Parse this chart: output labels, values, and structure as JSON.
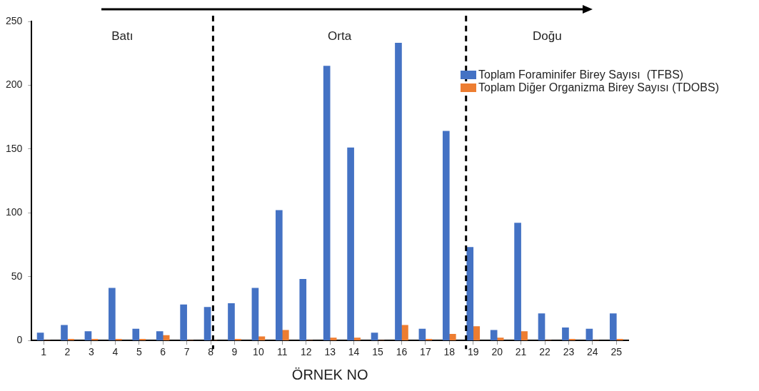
{
  "chart_data": {
    "type": "bar",
    "xlabel": "ÖRNEK NO",
    "x": [
      1,
      2,
      3,
      4,
      5,
      6,
      7,
      8,
      9,
      10,
      11,
      12,
      13,
      14,
      15,
      16,
      17,
      18,
      19,
      20,
      21,
      22,
      23,
      24,
      25
    ],
    "xlim": [
      0.5,
      25.5
    ],
    "xticks": [
      1,
      2,
      3,
      4,
      5,
      6,
      7,
      8,
      9,
      10,
      11,
      12,
      13,
      14,
      15,
      16,
      17,
      18,
      19,
      20,
      21,
      22,
      23,
      24,
      25
    ],
    "ylim": [
      0,
      250
    ],
    "yticks": [
      0,
      50,
      100,
      150,
      200,
      250
    ],
    "series": [
      {
        "name": "Toplam Foraminifer Birey Sayısı  (TFBS)",
        "color": "#4472c4",
        "values": [
          6,
          12,
          7,
          41,
          9,
          7,
          28,
          26,
          29,
          41,
          102,
          48,
          215,
          151,
          6,
          233,
          9,
          164,
          73,
          8,
          92,
          21,
          10,
          9,
          21
        ]
      },
      {
        "name": "Toplam Diğer Organizma Birey Sayısı (TDOBS)",
        "color": "#ed7d31",
        "values": [
          0,
          1,
          1,
          1,
          1,
          4,
          0,
          0,
          1,
          3,
          8,
          0,
          2,
          2,
          0,
          12,
          1,
          5,
          11,
          2,
          7,
          0,
          1,
          0,
          1
        ]
      }
    ],
    "ref_lines": [
      {
        "axis": "x",
        "value": 8.1,
        "color": "#000000",
        "line_style": "dashed"
      },
      {
        "axis": "x",
        "value": 18.7,
        "color": "#000000",
        "line_style": "dashed"
      }
    ],
    "annotations": [
      "Batı",
      "Orta",
      "Doğu"
    ],
    "grid": false,
    "legend": "right"
  }
}
